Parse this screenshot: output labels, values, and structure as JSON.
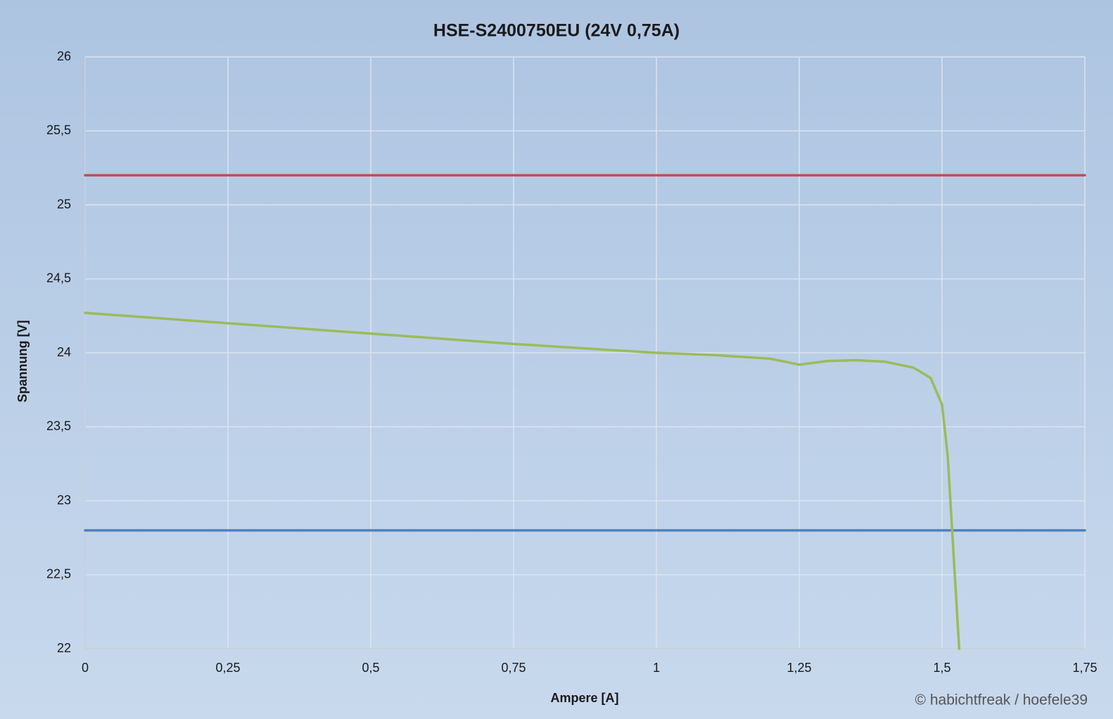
{
  "chart_data": {
    "type": "line",
    "title": "HSE-S2400750EU (24V 0,75A)",
    "x_label": "Ampere [A]",
    "y_label": "Spannung [V]",
    "annotation": "© habichtfreak / hoefele39",
    "xlim": [
      0,
      1.75
    ],
    "ylim": [
      22,
      26
    ],
    "xticks": [
      0,
      {
        "value": 0.25,
        "label": "0,25"
      },
      {
        "value": 0.5,
        "label": "0,5"
      },
      {
        "value": 0.75,
        "label": "0,75"
      },
      1,
      {
        "value": 1.25,
        "label": "1,25"
      },
      {
        "value": 1.5,
        "label": "1,5"
      },
      {
        "value": 1.75,
        "label": "1,75"
      }
    ],
    "yticks": [
      22,
      {
        "value": 22.5,
        "label": "22,5"
      },
      23,
      {
        "value": 23.5,
        "label": "23,5"
      },
      24,
      {
        "value": 24.5,
        "label": "24,5"
      },
      25,
      {
        "value": 25.5,
        "label": "25,5"
      },
      26
    ],
    "grid": true,
    "series": [
      {
        "color": "#c0504d",
        "x": [
          0,
          1.75
        ],
        "values": [
          25.2,
          25.2
        ]
      },
      {
        "color": "#4f81bd",
        "x": [
          0,
          1.75
        ],
        "values": [
          22.8,
          22.8
        ]
      },
      {
        "color": "#9bbb59",
        "x": [
          0,
          0.25,
          0.5,
          0.75,
          1,
          1.1,
          1.2,
          1.25,
          1.3,
          1.35,
          1.4,
          1.45,
          1.48,
          1.5,
          1.51,
          1.53
        ],
        "values": [
          24.27,
          24.2,
          24.13,
          24.06,
          24.0,
          23.985,
          23.96,
          23.92,
          23.945,
          23.95,
          23.94,
          23.9,
          23.83,
          23.65,
          23.3,
          22.0
        ]
      }
    ]
  }
}
